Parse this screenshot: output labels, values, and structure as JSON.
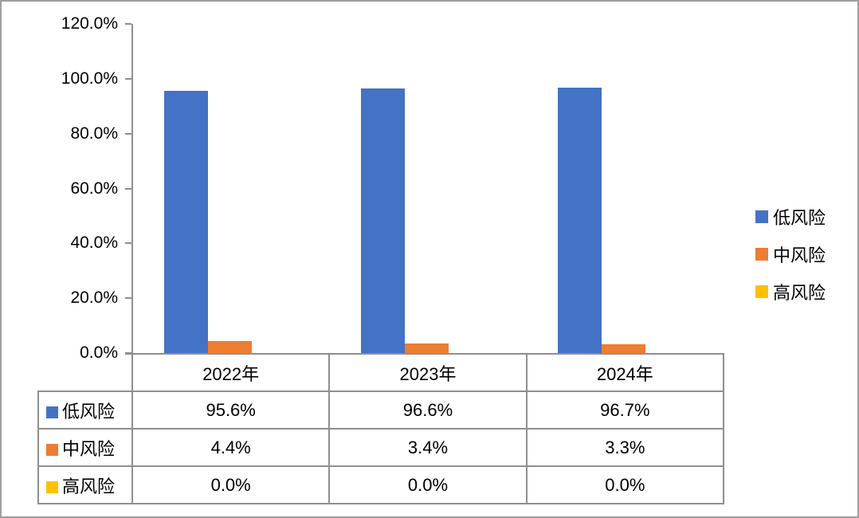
{
  "chart_data": {
    "type": "bar",
    "title": "",
    "categories": [
      "2022年",
      "2023年",
      "2024年"
    ],
    "series": [
      {
        "name": "低风险",
        "key": "low-risk",
        "color": "#4472C4",
        "values": [
          95.6,
          96.6,
          96.7
        ],
        "display": [
          "95.6%",
          "96.6%",
          "96.7%"
        ]
      },
      {
        "name": "中风险",
        "key": "medium-risk",
        "color": "#ED7D31",
        "values": [
          4.4,
          3.4,
          3.3
        ],
        "display": [
          "4.4%",
          "3.4%",
          "3.3%"
        ]
      },
      {
        "name": "高风险",
        "key": "high-risk",
        "color": "#FFC000",
        "values": [
          0.0,
          0.0,
          0.0
        ],
        "display": [
          "0.0%",
          "0.0%",
          "0.0%"
        ]
      }
    ],
    "y_axis": {
      "min": 0,
      "max": 120,
      "ticks": [
        {
          "value": 120,
          "label": "120.0%"
        },
        {
          "value": 100,
          "label": "100.0%"
        },
        {
          "value": 80,
          "label": "80.0%"
        },
        {
          "value": 60,
          "label": "60.0%"
        },
        {
          "value": 40,
          "label": "40.0%"
        },
        {
          "value": 20,
          "label": "20.0%"
        },
        {
          "value": 0,
          "label": "0.0%"
        }
      ]
    },
    "legend": {
      "position": "right"
    },
    "grid": false,
    "data_table": true
  },
  "colors": {
    "frame_border": "#9e9e9e",
    "axis": "#8f8f8f",
    "table_border": "#8f8f8f",
    "text": "#000000",
    "background": "#ffffff"
  }
}
